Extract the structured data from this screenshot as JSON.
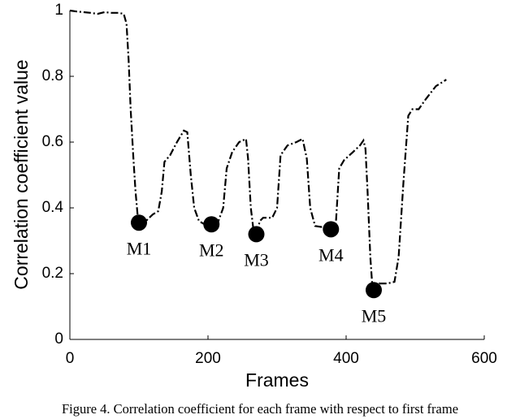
{
  "chart_data": {
    "type": "line",
    "caption": "Figure 4. Correlation coefficient for each frame with respect to first frame",
    "xlabel": "Frames",
    "ylabel": "Correlation coefficient value",
    "xlim": [
      0,
      600
    ],
    "xticks": [
      0,
      200,
      400,
      600
    ],
    "ylim": [
      0,
      1
    ],
    "yticks": [
      0,
      0.2,
      0.4,
      0.6,
      0.8,
      1
    ],
    "series": [
      {
        "color": "#000000",
        "x": [
          0,
          10,
          20,
          30,
          40,
          50,
          60,
          70,
          78,
          82,
          85,
          88,
          92,
          95,
          98,
          100,
          110,
          120,
          128,
          133,
          137,
          145,
          155,
          165,
          170,
          175,
          180,
          187,
          195,
          205,
          215,
          222,
          227,
          235,
          245,
          255,
          258,
          262,
          266,
          270,
          275,
          280,
          293,
          300,
          305,
          315,
          328,
          337,
          343,
          348,
          355,
          370,
          380,
          385,
          390,
          397,
          410,
          420,
          425,
          428,
          431,
          435,
          438,
          440,
          448,
          460,
          470,
          476,
          483,
          490,
          496,
          505,
          515,
          530,
          545
        ],
        "values": [
          1.0,
          0.997,
          0.995,
          0.993,
          0.99,
          0.995,
          0.993,
          0.993,
          0.99,
          0.96,
          0.85,
          0.7,
          0.55,
          0.45,
          0.38,
          0.355,
          0.36,
          0.38,
          0.39,
          0.45,
          0.54,
          0.56,
          0.6,
          0.635,
          0.63,
          0.5,
          0.4,
          0.36,
          0.35,
          0.35,
          0.36,
          0.4,
          0.52,
          0.57,
          0.6,
          0.61,
          0.55,
          0.4,
          0.33,
          0.32,
          0.36,
          0.37,
          0.37,
          0.4,
          0.56,
          0.59,
          0.6,
          0.61,
          0.55,
          0.4,
          0.345,
          0.34,
          0.335,
          0.35,
          0.52,
          0.545,
          0.57,
          0.59,
          0.605,
          0.58,
          0.45,
          0.25,
          0.16,
          0.15,
          0.17,
          0.17,
          0.175,
          0.25,
          0.48,
          0.68,
          0.7,
          0.7,
          0.73,
          0.77,
          0.79
        ]
      }
    ],
    "markers": {
      "color": "#000000",
      "labels": [
        "M1",
        "M2",
        "M3",
        "M4",
        "M5"
      ],
      "x": [
        100,
        205,
        270,
        378,
        440
      ],
      "values": [
        0.355,
        0.35,
        0.32,
        0.335,
        0.15
      ]
    }
  }
}
